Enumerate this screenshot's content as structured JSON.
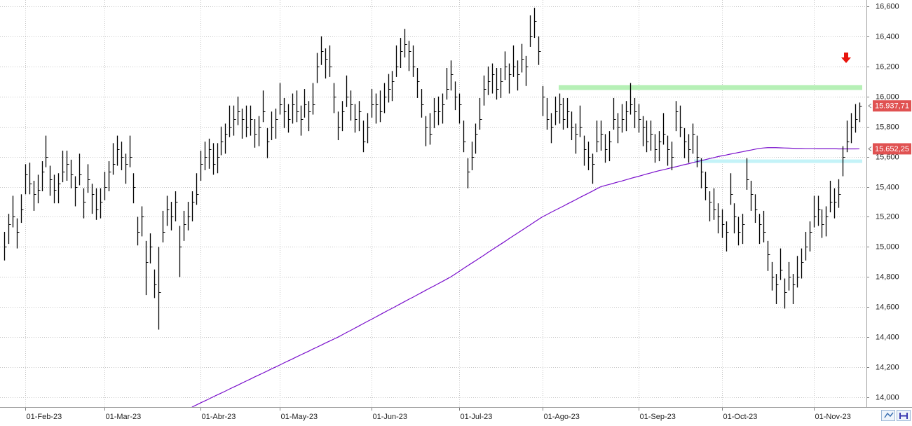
{
  "chart_data": {
    "type": "hlc",
    "bar_color": "#000000",
    "grid": true,
    "categories": [
      null,
      null,
      null,
      null,
      null,
      "01-Feb-23",
      null,
      null,
      null,
      null,
      null,
      null,
      null,
      null,
      null,
      null,
      null,
      null,
      null,
      null,
      null,
      null,
      null,
      null,
      "01-Mar-23",
      null,
      null,
      null,
      null,
      null,
      null,
      null,
      null,
      null,
      null,
      null,
      null,
      null,
      null,
      null,
      null,
      null,
      null,
      null,
      null,
      null,
      null,
      "01-Abr-23",
      null,
      null,
      null,
      null,
      null,
      null,
      null,
      null,
      null,
      null,
      null,
      null,
      null,
      null,
      null,
      null,
      null,
      null,
      "01-May-23",
      null,
      null,
      null,
      null,
      null,
      null,
      null,
      null,
      null,
      null,
      null,
      null,
      null,
      null,
      null,
      null,
      null,
      null,
      null,
      null,
      null,
      "01-Jun-23",
      null,
      null,
      null,
      null,
      null,
      null,
      null,
      null,
      null,
      null,
      null,
      null,
      null,
      null,
      null,
      null,
      null,
      null,
      null,
      null,
      "01-Jul-23",
      null,
      null,
      null,
      null,
      null,
      null,
      null,
      null,
      null,
      null,
      null,
      null,
      null,
      null,
      null,
      null,
      null,
      null,
      null,
      "01-Ago-23",
      null,
      null,
      null,
      null,
      null,
      null,
      null,
      null,
      null,
      null,
      null,
      null,
      null,
      null,
      null,
      null,
      null,
      null,
      null,
      null,
      null,
      null,
      "01-Sep-23",
      null,
      null,
      null,
      null,
      null,
      null,
      null,
      null,
      null,
      null,
      null,
      null,
      null,
      null,
      null,
      null,
      null,
      null,
      null,
      "01-Oct-23",
      null,
      null,
      null,
      null,
      null,
      null,
      null,
      null,
      null,
      null,
      null,
      null,
      null,
      null,
      null,
      null,
      null,
      null,
      null,
      null,
      null,
      "01-Nov-23",
      null,
      null,
      null,
      null,
      null,
      null,
      null,
      null,
      null,
      null,
      null
    ],
    "high": [
      15100,
      15220,
      15340,
      15190,
      15350,
      15550,
      15560,
      15440,
      15480,
      15570,
      15740,
      15540,
      15480,
      15490,
      15640,
      15640,
      15580,
      15470,
      15620,
      15390,
      15550,
      15420,
      15390,
      15390,
      15500,
      15570,
      15690,
      15740,
      15700,
      15620,
      15740,
      15490,
      15200,
      15270,
      15040,
      15090,
      14850,
      15000,
      15240,
      15340,
      15300,
      15370,
      15140,
      15240,
      15300,
      15370,
      15490,
      15640,
      15700,
      15720,
      15690,
      15690,
      15800,
      15820,
      15940,
      15940,
      16000,
      15920,
      15940,
      15940,
      15850,
      15870,
      16040,
      15790,
      15900,
      15920,
      16090,
      15990,
      15950,
      16020,
      16040,
      15940,
      16050,
      15970,
      16090,
      16290,
      16400,
      16320,
      16340,
      16090,
      15900,
      15970,
      16140,
      16040,
      15950,
      15970,
      15840,
      15890,
      16050,
      16020,
      16040,
      16090,
      16150,
      16170,
      16340,
      16390,
      16450,
      16370,
      16340,
      16190,
      16050,
      15870,
      15890,
      15990,
      16000,
      16020,
      16190,
      16240,
      16100,
      16020,
      15840,
      15590,
      15700,
      15820,
      15990,
      16140,
      16200,
      16220,
      16190,
      16190,
      16300,
      16220,
      16340,
      16240,
      16350,
      16270,
      16540,
      16590,
      16400,
      16070,
      15990,
      15890,
      16000,
      16020,
      15990,
      15990,
      15900,
      15820,
      15940,
      15740,
      15700,
      15620,
      15840,
      15840,
      15750,
      15770,
      15990,
      15890,
      15950,
      15970,
      16090,
      15990,
      15950,
      15870,
      15840,
      15840,
      15750,
      15770,
      15890,
      15740,
      15700,
      15970,
      15940,
      15790,
      15750,
      15820,
      15740,
      15590,
      15500,
      15370,
      15390,
      15290,
      15250,
      15170,
      15490,
      15290,
      15200,
      15220,
      15590,
      15440,
      15350,
      15220,
      15240,
      15040,
      14900,
      14820,
      14990,
      14790,
      14900,
      14820,
      14940,
      14990,
      15100,
      15170,
      15340,
      15340,
      15250,
      15270,
      15440,
      15390,
      15450,
      15670,
      15840,
      15890,
      15950,
      15960
    ],
    "low": [
      14910,
      15020,
      15130,
      14990,
      15160,
      15350,
      15350,
      15240,
      15290,
      15370,
      15530,
      15340,
      15290,
      15290,
      15430,
      15440,
      15390,
      15270,
      15410,
      15190,
      15360,
      15220,
      15180,
      15190,
      15310,
      15370,
      15480,
      15540,
      15510,
      15420,
      15530,
      15290,
      15010,
      15070,
      14680,
      14890,
      14660,
      14450,
      15030,
      15140,
      15110,
      15170,
      14800,
      15040,
      15110,
      15170,
      15280,
      15440,
      15510,
      15520,
      15480,
      15490,
      15610,
      15620,
      15730,
      15740,
      15810,
      15720,
      15730,
      15740,
      15660,
      15670,
      15830,
      15590,
      15710,
      15720,
      15880,
      15790,
      15760,
      15820,
      15830,
      15740,
      15860,
      15770,
      15880,
      16090,
      16210,
      16120,
      16130,
      15890,
      15710,
      15770,
      15930,
      15840,
      15760,
      15770,
      15630,
      15690,
      15860,
      15820,
      15830,
      15890,
      15960,
      15970,
      16130,
      16190,
      16260,
      16170,
      16130,
      15990,
      15860,
      15670,
      15680,
      15790,
      15810,
      15820,
      15980,
      16040,
      15910,
      15820,
      15630,
      15390,
      15510,
      15620,
      15780,
      15940,
      16010,
      16020,
      15980,
      15990,
      16110,
      16020,
      16130,
      16040,
      16160,
      16070,
      16330,
      16390,
      16210,
      15870,
      15780,
      15690,
      15810,
      15820,
      15780,
      15790,
      15710,
      15620,
      15730,
      15540,
      15510,
      15420,
      15630,
      15640,
      15560,
      15570,
      15780,
      15690,
      15760,
      15770,
      15880,
      15790,
      15760,
      15670,
      15630,
      15640,
      15560,
      15570,
      15680,
      15540,
      15510,
      15770,
      15730,
      15590,
      15560,
      15620,
      15530,
      15390,
      15310,
      15170,
      15180,
      15090,
      15060,
      14970,
      15280,
      15090,
      15010,
      15020,
      15380,
      15240,
      15160,
      15020,
      15030,
      14840,
      14710,
      14620,
      14780,
      14590,
      14710,
      14620,
      14730,
      14790,
      14910,
      14970,
      15130,
      15140,
      15060,
      15070,
      15230,
      15190,
      15260,
      15470,
      15630,
      15690,
      15760,
      15830
    ],
    "close": [
      15000,
      15150,
      15200,
      15100,
      15250,
      15480,
      15420,
      15350,
      15380,
      15500,
      15600,
      15450,
      15380,
      15420,
      15500,
      15550,
      15480,
      15400,
      15480,
      15300,
      15450,
      15350,
      15250,
      15300,
      15400,
      15500,
      15550,
      15650,
      15600,
      15550,
      15600,
      15400,
      15100,
      15200,
      14900,
      15000,
      14750,
      14700,
      15100,
      15250,
      15200,
      15300,
      15000,
      15150,
      15200,
      15300,
      15350,
      15550,
      15600,
      15650,
      15550,
      15600,
      15700,
      15750,
      15800,
      15850,
      15900,
      15850,
      15800,
      15850,
      15750,
      15800,
      15900,
      15700,
      15800,
      15850,
      15950,
      15900,
      15850,
      15950,
      15900,
      15850,
      15950,
      15900,
      15950,
      16200,
      16300,
      16250,
      16200,
      16000,
      15800,
      15900,
      16000,
      15950,
      15850,
      15900,
      15700,
      15800,
      15950,
      15950,
      15900,
      16000,
      16050,
      16100,
      16200,
      16300,
      16350,
      16300,
      16200,
      16100,
      15950,
      15800,
      15750,
      15900,
      15900,
      15950,
      16050,
      16150,
      16000,
      15950,
      15700,
      15500,
      15600,
      15750,
      15850,
      16050,
      16100,
      16150,
      16050,
      16100,
      16200,
      16150,
      16200,
      16150,
      16250,
      16200,
      16400,
      16500,
      16300,
      16000,
      15850,
      15800,
      15900,
      15950,
      15850,
      15900,
      15800,
      15750,
      15800,
      15650,
      15600,
      15550,
      15700,
      15750,
      15650,
      15700,
      15850,
      15800,
      15850,
      15900,
      15950,
      15900,
      15850,
      15800,
      15700,
      15750,
      15650,
      15700,
      15750,
      15650,
      15600,
      15900,
      15800,
      15700,
      15650,
      15750,
      15600,
      15500,
      15400,
      15300,
      15250,
      15200,
      15150,
      15100,
      15350,
      15200,
      15100,
      15150,
      15450,
      15350,
      15250,
      15150,
      15100,
      14950,
      14800,
      14750,
      14850,
      14700,
      14800,
      14750,
      14800,
      14900,
      15000,
      15100,
      15200,
      15250,
      15150,
      15200,
      15300,
      15300,
      15350,
      15600,
      15700,
      15800,
      15850,
      15937.71
    ],
    "moving_average": {
      "color": "#7a10cc",
      "values": [
        null,
        null,
        null,
        null,
        null,
        null,
        null,
        null,
        null,
        null,
        null,
        null,
        null,
        null,
        null,
        null,
        null,
        null,
        null,
        null,
        null,
        null,
        null,
        null,
        null,
        null,
        null,
        null,
        null,
        null,
        null,
        null,
        null,
        null,
        null,
        null,
        null,
        null,
        null,
        null,
        null,
        null,
        null,
        null,
        null,
        13935,
        13948,
        13962,
        13975,
        13988,
        14002,
        14015,
        14028,
        14041,
        14055,
        14068,
        14081,
        14095,
        14108,
        14121,
        14135,
        14148,
        14161,
        14174,
        14188,
        14201,
        14214,
        14228,
        14241,
        14254,
        14268,
        14281,
        14294,
        14307,
        14321,
        14334,
        14347,
        14361,
        14374,
        14387,
        14400,
        14415,
        14430,
        14444,
        14459,
        14474,
        14489,
        14504,
        14518,
        14533,
        14548,
        14563,
        14578,
        14592,
        14607,
        14622,
        14637,
        14652,
        14666,
        14681,
        14696,
        14711,
        14726,
        14740,
        14755,
        14770,
        14785,
        14800,
        14818,
        14836,
        14855,
        14873,
        14891,
        14909,
        14927,
        14945,
        14964,
        14982,
        15000,
        15018,
        15036,
        15055,
        15073,
        15091,
        15109,
        15127,
        15145,
        15164,
        15182,
        15200,
        15214,
        15229,
        15243,
        15257,
        15271,
        15286,
        15300,
        15314,
        15329,
        15343,
        15357,
        15371,
        15386,
        15400,
        15408,
        15415,
        15423,
        15431,
        15438,
        15446,
        15454,
        15462,
        15469,
        15477,
        15485,
        15492,
        15500,
        15507,
        15513,
        15520,
        15527,
        15533,
        15540,
        15547,
        15553,
        15560,
        15567,
        15573,
        15580,
        15587,
        15593,
        15600,
        15606,
        15611,
        15617,
        15622,
        15628,
        15633,
        15639,
        15644,
        15650,
        15655,
        15658,
        15660,
        15660,
        15660,
        15659,
        15658,
        15657,
        15656,
        15655,
        15655,
        15654,
        15654,
        15654,
        15653,
        15653,
        15653,
        15653,
        15653,
        15652,
        15652,
        15652,
        15652,
        15652,
        15652.25
      ]
    },
    "bands": [
      {
        "value": 16060,
        "color": "#b6f0b6"
      },
      {
        "value": 15570,
        "color": "#c4f3f8"
      }
    ],
    "price_labels": [
      {
        "value": 15937.71,
        "label": "15.937,71"
      },
      {
        "value": 15652.25,
        "label": "15.652,25"
      }
    ],
    "price_label_color": "#e05252",
    "ylim": [
      13935,
      16642
    ],
    "yticks": [
      {
        "value": 14000,
        "label": "14,000"
      },
      {
        "value": 14200,
        "label": "14,200"
      },
      {
        "value": 14400,
        "label": "14,400"
      },
      {
        "value": 14600,
        "label": "14,600"
      },
      {
        "value": 14800,
        "label": "14,800"
      },
      {
        "value": 15000,
        "label": "15,000"
      },
      {
        "value": 15200,
        "label": "15,200"
      },
      {
        "value": 15400,
        "label": "15,400"
      },
      {
        "value": 15600,
        "label": "15,600"
      },
      {
        "value": 15800,
        "label": "15,800"
      },
      {
        "value": 16000,
        "label": "16,000"
      },
      {
        "value": 16200,
        "label": "16,200"
      },
      {
        "value": 16400,
        "label": "16,400"
      },
      {
        "value": 16600,
        "label": "16,600"
      }
    ]
  }
}
